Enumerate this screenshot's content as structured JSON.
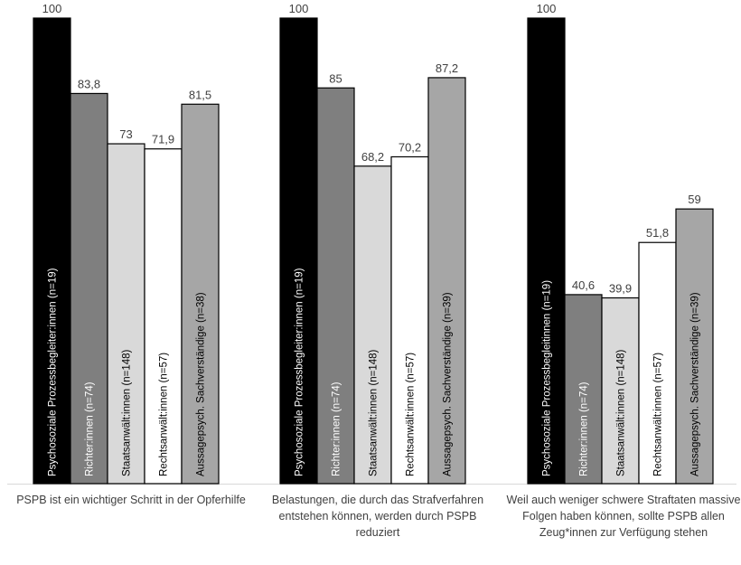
{
  "chart_data": {
    "type": "bar",
    "title": "",
    "xlabel": "",
    "ylabel": "",
    "ylim": [
      0,
      100
    ],
    "grid": false,
    "legend": "none (series names printed vertically inside bars)",
    "colors": [
      "#000000",
      "#7f7f7f",
      "#d9d9d9",
      "#ffffff",
      "#a6a6a6"
    ],
    "categories": [
      "PSPB ist ein wichtiger Schritt in der Opferhilfe",
      "Belastungen, die durch das Strafverfahren entstehen können, werden durch PSPB reduziert",
      "Weil auch weniger schwere Straftaten massive Folgen haben können, sollte PSPB allen Zeug*innen zur Verfügung stehen"
    ],
    "groups": [
      {
        "category": "PSPB ist ein wichtiger Schritt in der Opferhilfe",
        "bars": [
          {
            "label": "Psychosoziale Prozessbegleiter:innen (n=19)",
            "value": 100,
            "value_label": "100"
          },
          {
            "label": "Richter:innen (n=74)",
            "value": 83.8,
            "value_label": "83,8"
          },
          {
            "label": "Staatsanwält:innen (n=148)",
            "value": 73,
            "value_label": "73"
          },
          {
            "label": "Rechtsanwält:innen (n=57)",
            "value": 71.9,
            "value_label": "71,9"
          },
          {
            "label": "Aussagepsych. Sachverständige (n=38)",
            "value": 81.5,
            "value_label": "81,5"
          }
        ]
      },
      {
        "category": "Belastungen, die durch das Strafverfahren entstehen können, werden durch PSPB reduziert",
        "bars": [
          {
            "label": "Psychosoziale Prozessbegleiter:innen (n=19)",
            "value": 100,
            "value_label": "100"
          },
          {
            "label": "Richter:innen (n=74)",
            "value": 85,
            "value_label": "85"
          },
          {
            "label": "Staatsanwält:innen (n=148)",
            "value": 68.2,
            "value_label": "68,2"
          },
          {
            "label": "Rechtsanwält:innen (n=57)",
            "value": 70.2,
            "value_label": "70,2"
          },
          {
            "label": "Aussagepsych. Sachverständige (n=39)",
            "value": 87.2,
            "value_label": "87,2"
          }
        ]
      },
      {
        "category": "Weil auch weniger schwere Straftaten massive Folgen haben können, sollte PSPB allen Zeug*innen zur Verfügung stehen",
        "bars": [
          {
            "label": "Psychosoziale Prozessbegleitinnen (n=19)",
            "value": 100,
            "value_label": "100"
          },
          {
            "label": "Richter:innen (n=74)",
            "value": 40.6,
            "value_label": "40,6"
          },
          {
            "label": "Staatsanwält:innen (n=148)",
            "value": 39.9,
            "value_label": "39,9"
          },
          {
            "label": "Rechtsanwält:innen (n=57)",
            "value": 51.8,
            "value_label": "51,8"
          },
          {
            "label": "Aussagepsych. Sachverständige (n=39)",
            "value": 59,
            "value_label": "59"
          }
        ]
      }
    ]
  }
}
